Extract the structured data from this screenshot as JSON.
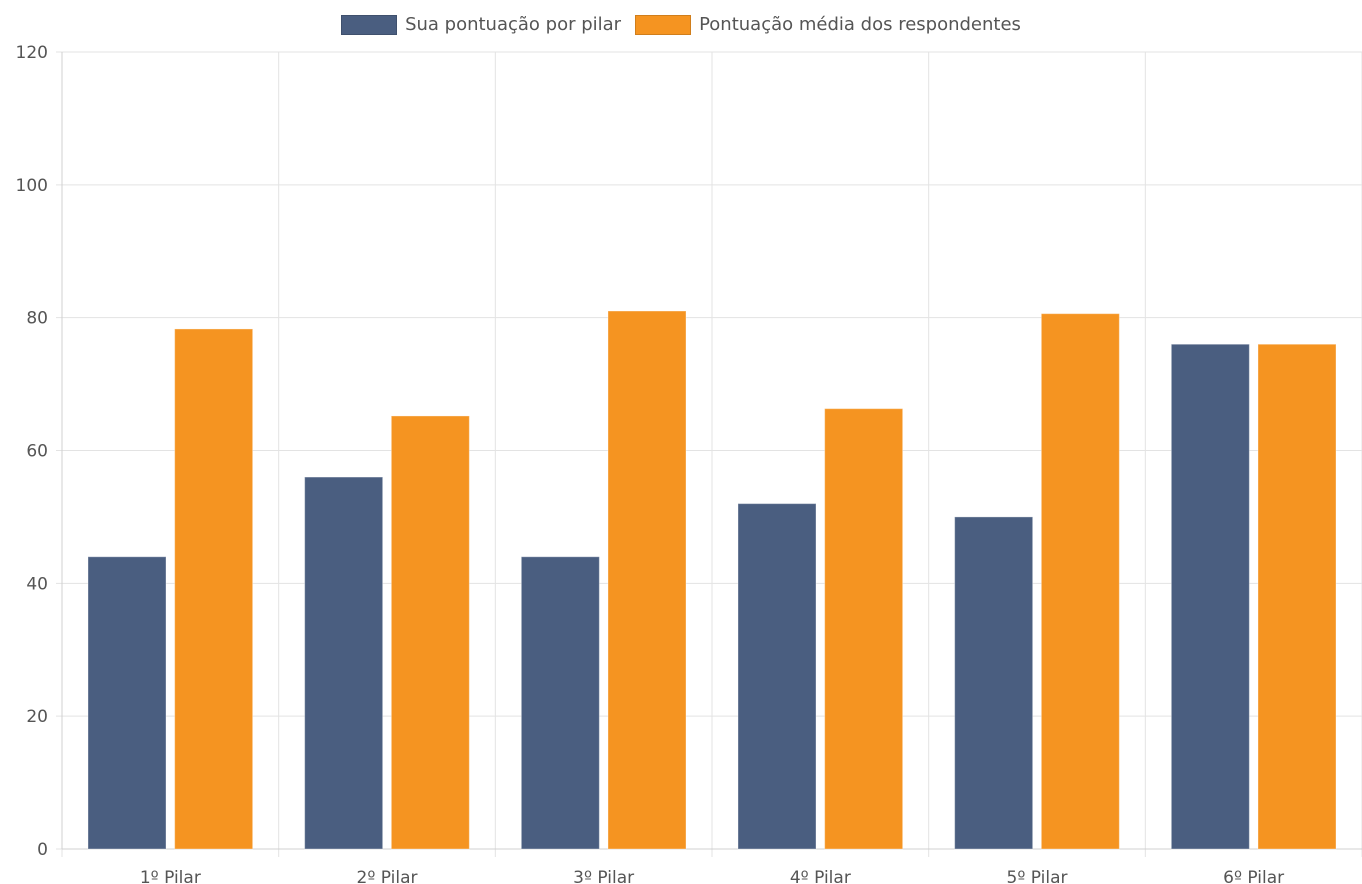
{
  "chart_data": {
    "type": "bar",
    "categories": [
      "1º Pilar",
      "2º Pilar",
      "3º Pilar",
      "4º Pilar",
      "5º Pilar",
      "6º Pilar"
    ],
    "series": [
      {
        "name": "Sua pontuação por pilar",
        "color": "#4a5e80",
        "values": [
          44,
          56,
          44,
          52,
          50,
          76
        ]
      },
      {
        "name": "Pontuação média dos respondentes",
        "color": "#f59421",
        "values": [
          78.3,
          65.2,
          81,
          66.3,
          80.6,
          76
        ]
      }
    ],
    "ylim": [
      0,
      120
    ],
    "yticks": [
      "0",
      "20",
      "40",
      "60",
      "80",
      "100",
      "120"
    ],
    "grid": true,
    "legend_position": "top-center",
    "title": "",
    "xlabel": "",
    "ylabel": ""
  }
}
